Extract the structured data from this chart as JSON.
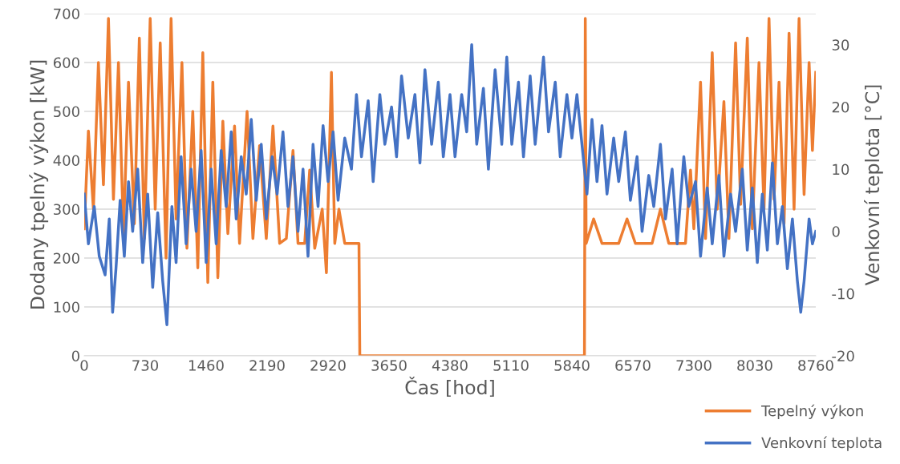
{
  "chart_data": {
    "type": "line",
    "xlabel": "Čas [hod]",
    "ylabel": "Dodany tpelný výkon [kW]",
    "y2label": "Venkovní teplota [°C]",
    "xlim": [
      0,
      8760
    ],
    "xticks": [
      0,
      730,
      1460,
      2190,
      2920,
      3650,
      4380,
      5110,
      5840,
      6570,
      7300,
      8030,
      8760
    ],
    "ylim": [
      0,
      700
    ],
    "yticks": [
      0,
      100,
      200,
      300,
      400,
      500,
      600,
      700
    ],
    "y2lim": [
      -20,
      35
    ],
    "y2ticks": [
      -20,
      -10,
      0,
      10,
      20,
      30
    ],
    "grid": "y",
    "legend": "bottom right",
    "marker": "none",
    "line_style": "solid",
    "series": [
      {
        "name": "Tepelný výkon",
        "color": "#ed7d31",
        "x": [
          0,
          50,
          110,
          170,
          230,
          290,
          350,
          410,
          470,
          530,
          600,
          660,
          720,
          790,
          850,
          910,
          980,
          1040,
          1100,
          1170,
          1230,
          1300,
          1360,
          1420,
          1480,
          1540,
          1600,
          1660,
          1720,
          1800,
          1860,
          1950,
          2020,
          2100,
          2180,
          2260,
          2340,
          2420,
          2500,
          2560,
          2640,
          2700,
          2760,
          2850,
          2900,
          2960,
          3000,
          3050,
          3120,
          3180,
          3230,
          3290,
          3300,
          4500,
          5990,
          6000,
          6010,
          6100,
          6200,
          6400,
          6500,
          6600,
          6800,
          6900,
          7000,
          7200,
          7260,
          7300,
          7380,
          7440,
          7520,
          7580,
          7660,
          7720,
          7800,
          7860,
          7940,
          8000,
          8080,
          8140,
          8200,
          8260,
          8320,
          8380,
          8440,
          8500,
          8560,
          8620,
          8680,
          8720,
          8760
        ],
        "values": [
          260,
          460,
          300,
          600,
          350,
          690,
          320,
          600,
          250,
          560,
          270,
          650,
          240,
          690,
          300,
          640,
          200,
          690,
          280,
          600,
          220,
          500,
          180,
          620,
          150,
          560,
          160,
          480,
          250,
          470,
          230,
          500,
          240,
          430,
          240,
          470,
          230,
          240,
          420,
          230,
          230,
          380,
          220,
          300,
          170,
          580,
          230,
          300,
          230,
          230,
          230,
          230,
          0,
          0,
          0,
          690,
          230,
          280,
          230,
          230,
          280,
          230,
          230,
          300,
          230,
          230,
          380,
          260,
          560,
          240,
          620,
          300,
          520,
          240,
          640,
          310,
          650,
          260,
          600,
          300,
          690,
          320,
          560,
          270,
          660,
          300,
          690,
          330,
          600,
          420,
          580
        ]
      },
      {
        "name": "Venkovní teplota",
        "color": "#4472c4",
        "axis": "y2",
        "x": [
          0,
          50,
          120,
          180,
          250,
          300,
          340,
          380,
          430,
          480,
          530,
          580,
          640,
          700,
          760,
          820,
          880,
          940,
          990,
          1050,
          1100,
          1160,
          1220,
          1280,
          1340,
          1400,
          1460,
          1520,
          1580,
          1640,
          1700,
          1760,
          1820,
          1880,
          1940,
          2000,
          2060,
          2120,
          2180,
          2250,
          2310,
          2380,
          2440,
          2500,
          2560,
          2620,
          2680,
          2740,
          2800,
          2860,
          2920,
          2980,
          3040,
          3120,
          3200,
          3260,
          3320,
          3400,
          3460,
          3540,
          3600,
          3680,
          3740,
          3800,
          3880,
          3960,
          4020,
          4080,
          4160,
          4240,
          4300,
          4380,
          4440,
          4520,
          4580,
          4640,
          4700,
          4780,
          4840,
          4920,
          5000,
          5060,
          5120,
          5200,
          5260,
          5340,
          5400,
          5500,
          5560,
          5640,
          5700,
          5780,
          5840,
          5900,
          5960,
          6020,
          6080,
          6140,
          6200,
          6260,
          6340,
          6400,
          6480,
          6540,
          6620,
          6680,
          6760,
          6820,
          6900,
          6960,
          7040,
          7100,
          7180,
          7240,
          7320,
          7380,
          7460,
          7520,
          7600,
          7660,
          7740,
          7800,
          7880,
          7940,
          8000,
          8060,
          8120,
          8180,
          8240,
          8300,
          8360,
          8420,
          8480,
          8540,
          8580,
          8620,
          8680,
          8720,
          8760
        ],
        "values": [
          6,
          -2,
          4,
          -4,
          -7,
          2,
          -13,
          -6,
          5,
          -4,
          8,
          0,
          10,
          -5,
          6,
          -9,
          3,
          -8,
          -15,
          4,
          -5,
          12,
          -2,
          10,
          0,
          13,
          -5,
          10,
          -2,
          13,
          4,
          16,
          2,
          12,
          6,
          18,
          5,
          14,
          2,
          12,
          6,
          16,
          4,
          12,
          0,
          10,
          -4,
          14,
          4,
          17,
          8,
          16,
          5,
          15,
          10,
          22,
          12,
          21,
          8,
          22,
          14,
          20,
          12,
          25,
          15,
          22,
          11,
          26,
          14,
          24,
          12,
          22,
          12,
          22,
          16,
          30,
          14,
          23,
          10,
          26,
          14,
          28,
          14,
          24,
          12,
          25,
          14,
          28,
          16,
          24,
          12,
          22,
          15,
          22,
          14,
          6,
          18,
          8,
          17,
          6,
          15,
          8,
          16,
          5,
          12,
          0,
          9,
          4,
          14,
          2,
          10,
          -2,
          12,
          4,
          8,
          -4,
          7,
          -2,
          9,
          -4,
          6,
          0,
          10,
          -3,
          7,
          -5,
          6,
          -3,
          11,
          -2,
          4,
          -6,
          2,
          -8,
          -13,
          -8,
          2,
          -2,
          0
        ]
      }
    ]
  }
}
